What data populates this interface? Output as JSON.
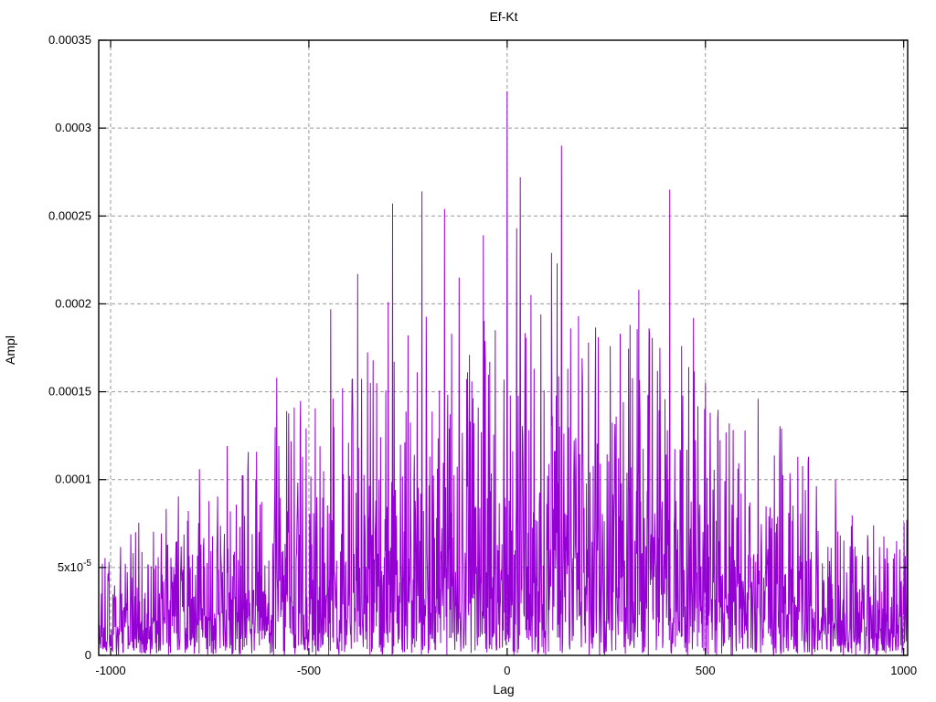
{
  "chart_data": {
    "type": "line",
    "style_note": "gnuplot-style dense noisy amplitude-vs-lag trace, looks like impulses",
    "title": "Ef-Kt",
    "xlabel": "Lag",
    "ylabel": "Ampl",
    "xlim": [
      -1030,
      1010
    ],
    "ylim": [
      0,
      0.00035
    ],
    "grid": "dashed gray at every major tick",
    "legend": "none",
    "line_color": "#9400D3",
    "grid_color": "#999999",
    "axis_color": "#000000",
    "background_color": "#ffffff",
    "xticks": [
      {
        "v": -1000,
        "label": "-1000"
      },
      {
        "v": -500,
        "label": "-500"
      },
      {
        "v": 0,
        "label": "0"
      },
      {
        "v": 500,
        "label": "500"
      },
      {
        "v": 1000,
        "label": "1000"
      }
    ],
    "yticks": [
      {
        "v": 0,
        "label": "0"
      },
      {
        "v": 5e-05,
        "label": "5x10^-5"
      },
      {
        "v": 0.0001,
        "label": "0.0001"
      },
      {
        "v": 0.00015,
        "label": "0.00015"
      },
      {
        "v": 0.0002,
        "label": "0.0002"
      },
      {
        "v": 0.00025,
        "label": "0.00025"
      },
      {
        "v": 0.0003,
        "label": "0.0003"
      },
      {
        "v": 0.00035,
        "label": "0.00035"
      }
    ],
    "series": {
      "name": "Ef-Kt",
      "lag_start": -1030,
      "lag_end": 1010,
      "noise": {
        "seed": 20,
        "clip": 0.96,
        "decay": 2.1
      },
      "envelope": [
        [
          -1030,
          4.2e-05
        ],
        [
          -950,
          5e-05
        ],
        [
          -850,
          6.3e-05
        ],
        [
          -750,
          7.5e-05
        ],
        [
          -650,
          8.5e-05
        ],
        [
          -550,
          9.5e-05
        ],
        [
          -450,
          0.000105
        ],
        [
          -350,
          0.000115
        ],
        [
          -250,
          0.000125
        ],
        [
          -150,
          0.00013
        ],
        [
          -50,
          0.000135
        ],
        [
          0,
          0.00014
        ],
        [
          100,
          0.000135
        ],
        [
          200,
          0.00013
        ],
        [
          300,
          0.000135
        ],
        [
          400,
          0.00013
        ],
        [
          500,
          0.00012
        ],
        [
          600,
          0.000105
        ],
        [
          700,
          9e-05
        ],
        [
          800,
          7e-05
        ],
        [
          900,
          5.5e-05
        ],
        [
          960,
          5e-05
        ],
        [
          1010,
          5.5e-05
        ]
      ],
      "peaks": [
        [
          -776,
          0.000106
        ],
        [
          -654,
          0.000104
        ],
        [
          -581,
          0.000158
        ],
        [
          -556,
          0.000139
        ],
        [
          -537,
          0.000141
        ],
        [
          -516,
          0.000113
        ],
        [
          -472,
          0.000119
        ],
        [
          -445,
          0.000197
        ],
        [
          -415,
          0.000152
        ],
        [
          -377,
          0.000217
        ],
        [
          -345,
          0.000155
        ],
        [
          -300,
          0.000201
        ],
        [
          -289,
          0.000257
        ],
        [
          -250,
          0.000182
        ],
        [
          -215,
          0.000264
        ],
        [
          -158,
          0.000254
        ],
        [
          -140,
          0.000183
        ],
        [
          -121,
          0.000215
        ],
        [
          -95,
          0.000171
        ],
        [
          -60,
          0.000239
        ],
        [
          -30,
          0.000185
        ],
        [
          0,
          0.000321
        ],
        [
          24,
          0.000243
        ],
        [
          33,
          0.000272
        ],
        [
          60,
          0.000205
        ],
        [
          85,
          0.000194
        ],
        [
          112,
          0.000229
        ],
        [
          126,
          0.000223
        ],
        [
          137,
          0.00029
        ],
        [
          160,
          0.000186
        ],
        [
          180,
          0.000193
        ],
        [
          205,
          0.000178
        ],
        [
          230,
          0.000181
        ],
        [
          260,
          0.000176
        ],
        [
          285,
          0.000183
        ],
        [
          310,
          0.000188
        ],
        [
          332,
          0.000208
        ],
        [
          358,
          0.000186
        ],
        [
          385,
          0.000175
        ],
        [
          410,
          0.000265
        ],
        [
          440,
          0.000176
        ],
        [
          470,
          0.000192
        ],
        [
          500,
          0.000155
        ],
        [
          512,
          0.000138
        ],
        [
          560,
          0.000132
        ],
        [
          600,
          0.000128
        ],
        [
          633,
          0.000146
        ],
        [
          687,
          0.000112
        ],
        [
          733,
          0.000113
        ],
        [
          760,
          0.000113
        ],
        [
          924,
          7.4e-05
        ]
      ]
    }
  }
}
